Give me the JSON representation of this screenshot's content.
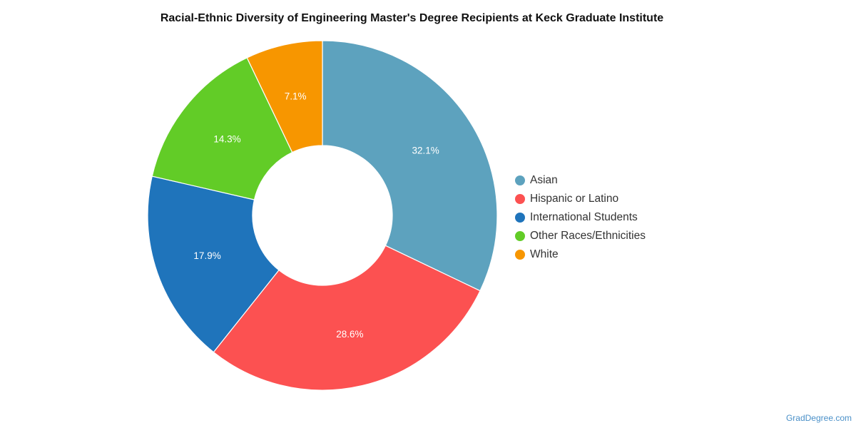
{
  "chart_data": {
    "type": "pie",
    "title": "Racial-Ethnic Diversity of Engineering Master's Degree Recipients at Keck Graduate Institute",
    "categories": [
      "Asian",
      "Hispanic or Latino",
      "International Students",
      "Other Races/Ethnicities",
      "White"
    ],
    "values": [
      32.1,
      28.6,
      17.9,
      14.3,
      7.1
    ],
    "data_labels": [
      "32.1%",
      "28.6%",
      "17.9%",
      "14.3%",
      "7.1%"
    ],
    "colors": [
      "#5da2be",
      "#fc5151",
      "#1f74bb",
      "#62cc27",
      "#f79600"
    ],
    "legend_placement": "right",
    "donut": true
  },
  "watermark": "GradDegree.com"
}
